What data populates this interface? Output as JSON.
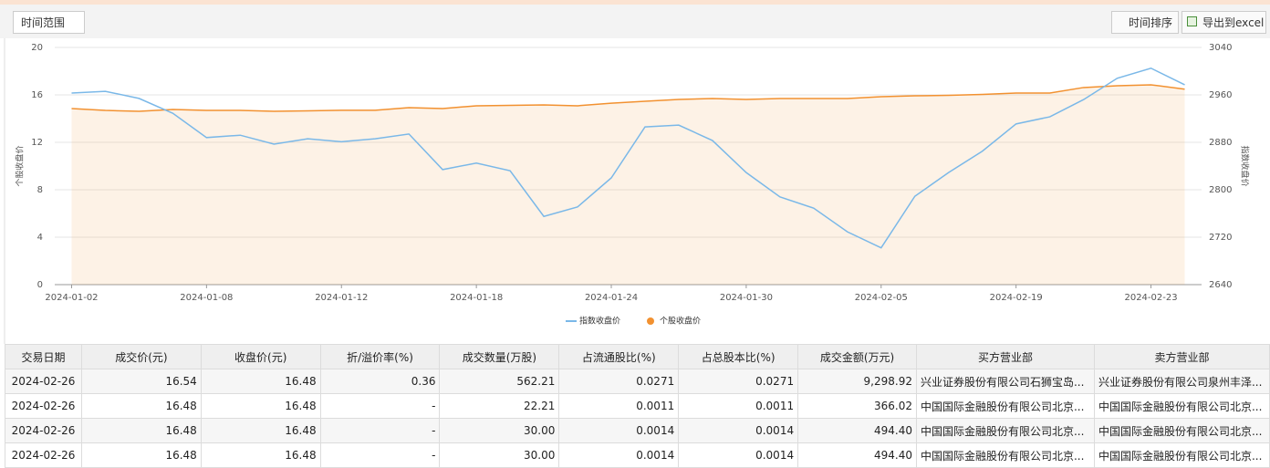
{
  "toolbar": {
    "range_label": "时间范围",
    "sort_button": "时间排序",
    "export_button": "导出到excel"
  },
  "chart_data": {
    "type": "line",
    "categories": [
      "2024-01-02",
      null,
      null,
      null,
      "2024-01-08",
      null,
      null,
      null,
      "2024-01-12",
      null,
      null,
      null,
      "2024-01-18",
      null,
      null,
      null,
      "2024-01-24",
      null,
      null,
      null,
      "2024-01-30",
      null,
      null,
      null,
      "2024-02-05",
      null,
      null,
      null,
      "2024-02-19",
      null,
      null,
      null,
      "2024-02-23",
      null
    ],
    "series": [
      {
        "name": "指数收盘价",
        "color": "#7ab8e8",
        "axis": "y2",
        "values": [
          2963,
          2966,
          2954,
          2929,
          2888,
          2892,
          2877,
          2886,
          2881,
          2886,
          2894,
          2834,
          2845,
          2832,
          2755,
          2771,
          2820,
          2906,
          2909,
          2883,
          2829,
          2788,
          2769,
          2729,
          2702,
          2789,
          2829,
          2865,
          2911,
          2923,
          2952,
          2988,
          3005,
          2977
        ]
      },
      {
        "name": "个股收盘价",
        "color": "#f29130",
        "area": true,
        "values": [
          14.85,
          14.69,
          14.62,
          14.77,
          14.69,
          14.69,
          14.62,
          14.65,
          14.7,
          14.7,
          14.92,
          14.85,
          15.08,
          15.12,
          15.15,
          15.08,
          15.3,
          15.46,
          15.62,
          15.69,
          15.62,
          15.69,
          15.69,
          15.69,
          15.85,
          15.92,
          15.96,
          16.04,
          16.15,
          16.15,
          16.62,
          16.77,
          16.85,
          16.48
        ]
      }
    ],
    "ylabel": "个股收盘价",
    "y2label": "指数收盘价",
    "ylim": [
      0,
      20
    ],
    "yticks": [
      0,
      4,
      8,
      12,
      16,
      20
    ],
    "y2lim": [
      2640,
      3040
    ],
    "y2ticks": [
      2640,
      2720,
      2800,
      2880,
      2960,
      3040
    ],
    "grid": true,
    "legend": "bottom"
  },
  "table": {
    "columns": [
      "交易日期",
      "成交价(元)",
      "收盘价(元)",
      "折/溢价率(%)",
      "成交数量(万股)",
      "占流通股比(%)",
      "占总股本比(%)",
      "成交金额(万元)",
      "买方营业部",
      "卖方营业部"
    ],
    "rows": [
      [
        "2024-02-26",
        "16.54",
        "16.48",
        "0.36",
        "562.21",
        "0.0271",
        "0.0271",
        "9,298.92",
        "兴业证券股份有限公司石狮宝岛...",
        "兴业证券股份有限公司泉州丰泽..."
      ],
      [
        "2024-02-26",
        "16.48",
        "16.48",
        "-",
        "22.21",
        "0.0011",
        "0.0011",
        "366.02",
        "中国国际金融股份有限公司北京...",
        "中国国际金融股份有限公司北京..."
      ],
      [
        "2024-02-26",
        "16.48",
        "16.48",
        "-",
        "30.00",
        "0.0014",
        "0.0014",
        "494.40",
        "中国国际金融股份有限公司北京...",
        "中国国际金融股份有限公司北京..."
      ],
      [
        "2024-02-26",
        "16.48",
        "16.48",
        "-",
        "30.00",
        "0.0014",
        "0.0014",
        "494.40",
        "中国国际金融股份有限公司北京...",
        "中国国际金融股份有限公司北京..."
      ]
    ]
  }
}
